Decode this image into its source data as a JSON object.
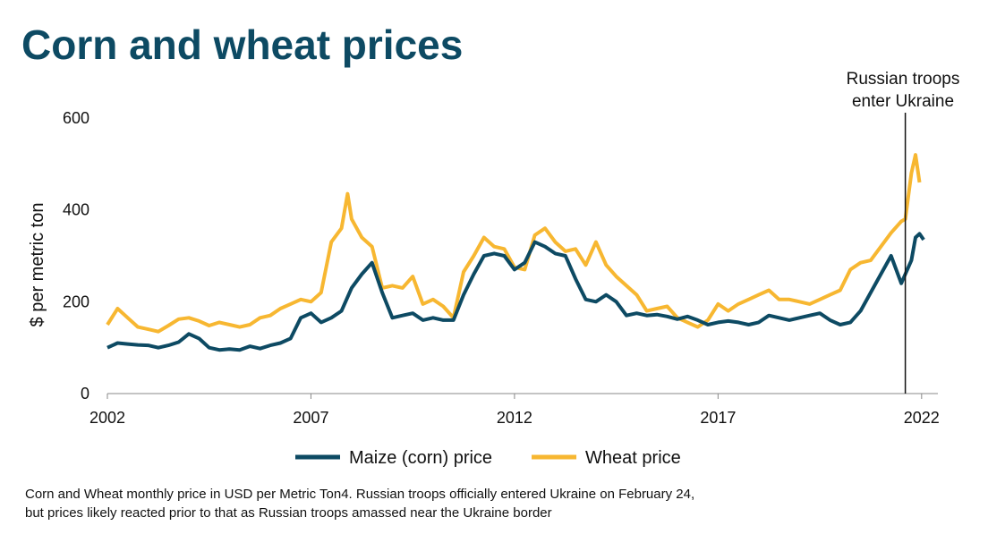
{
  "chart_data": {
    "type": "line",
    "title": "Corn and wheat prices",
    "y_label": "$ per metric ton",
    "caption": "Corn and Wheat monthly price in USD per Metric Ton4. Russian troops officially entered Ukraine on February 24, but prices likely reacted prior to that as Russian troops amassed near the Ukraine border",
    "annotation": {
      "lines": [
        "Russian troops",
        "enter Ukraine"
      ],
      "x": 2021.6
    },
    "xlim": [
      2002,
      2022.4
    ],
    "xticks": [
      2002,
      2007,
      2012,
      2017,
      2022
    ],
    "ylim": [
      0,
      600
    ],
    "yticks": [
      0,
      200,
      400,
      600
    ],
    "legend": "bottom",
    "series": [
      {
        "name": "Maize (corn) price",
        "color": "#0d4a63",
        "x": [
          2002,
          2002.25,
          2002.5,
          2002.75,
          2003,
          2003.25,
          2003.5,
          2003.75,
          2004,
          2004.25,
          2004.5,
          2004.75,
          2005,
          2005.25,
          2005.5,
          2005.75,
          2006,
          2006.25,
          2006.5,
          2006.75,
          2007,
          2007.25,
          2007.5,
          2007.75,
          2008,
          2008.25,
          2008.5,
          2008.75,
          2009,
          2009.25,
          2009.5,
          2009.75,
          2010,
          2010.25,
          2010.5,
          2010.75,
          2011,
          2011.25,
          2011.5,
          2011.75,
          2012,
          2012.25,
          2012.5,
          2012.75,
          2013,
          2013.25,
          2013.5,
          2013.75,
          2014,
          2014.25,
          2014.5,
          2014.75,
          2015,
          2015.25,
          2015.5,
          2015.75,
          2016,
          2016.25,
          2016.5,
          2016.75,
          2017,
          2017.25,
          2017.5,
          2017.75,
          2018,
          2018.25,
          2018.5,
          2018.75,
          2019,
          2019.25,
          2019.5,
          2019.75,
          2020,
          2020.25,
          2020.5,
          2020.75,
          2021,
          2021.25,
          2021.5,
          2021.6,
          2021.75,
          2021.85,
          2021.95,
          2022.05
        ],
        "values": [
          100,
          110,
          108,
          106,
          105,
          100,
          105,
          112,
          130,
          120,
          100,
          95,
          97,
          95,
          103,
          98,
          105,
          110,
          120,
          165,
          175,
          155,
          165,
          180,
          230,
          260,
          285,
          220,
          165,
          170,
          175,
          160,
          165,
          160,
          160,
          215,
          260,
          300,
          305,
          300,
          270,
          285,
          330,
          320,
          305,
          300,
          250,
          205,
          200,
          215,
          200,
          170,
          175,
          170,
          172,
          168,
          162,
          168,
          160,
          150,
          155,
          158,
          155,
          150,
          155,
          170,
          165,
          160,
          165,
          170,
          175,
          160,
          150,
          155,
          180,
          220,
          260,
          300,
          240,
          260,
          290,
          340,
          348,
          335
        ]
      },
      {
        "name": "Wheat price",
        "color": "#f7b731",
        "x": [
          2002,
          2002.25,
          2002.5,
          2002.75,
          2003,
          2003.25,
          2003.5,
          2003.75,
          2004,
          2004.25,
          2004.5,
          2004.75,
          2005,
          2005.25,
          2005.5,
          2005.75,
          2006,
          2006.25,
          2006.5,
          2006.75,
          2007,
          2007.25,
          2007.5,
          2007.75,
          2007.9,
          2008,
          2008.25,
          2008.5,
          2008.75,
          2009,
          2009.25,
          2009.5,
          2009.75,
          2010,
          2010.25,
          2010.5,
          2010.75,
          2011,
          2011.25,
          2011.5,
          2011.75,
          2012,
          2012.25,
          2012.5,
          2012.75,
          2013,
          2013.25,
          2013.5,
          2013.75,
          2014,
          2014.25,
          2014.5,
          2014.75,
          2015,
          2015.25,
          2015.5,
          2015.75,
          2016,
          2016.25,
          2016.5,
          2016.75,
          2017,
          2017.25,
          2017.5,
          2017.75,
          2018,
          2018.25,
          2018.5,
          2018.75,
          2019,
          2019.25,
          2019.5,
          2019.75,
          2020,
          2020.25,
          2020.5,
          2020.75,
          2021,
          2021.25,
          2021.5,
          2021.6,
          2021.75,
          2021.85,
          2021.95
        ],
        "values": [
          150,
          185,
          165,
          145,
          140,
          135,
          148,
          162,
          165,
          158,
          148,
          155,
          150,
          145,
          150,
          165,
          170,
          185,
          195,
          205,
          200,
          220,
          330,
          360,
          435,
          380,
          340,
          320,
          230,
          235,
          230,
          255,
          195,
          205,
          190,
          165,
          265,
          300,
          340,
          320,
          315,
          275,
          270,
          345,
          360,
          330,
          310,
          315,
          280,
          330,
          280,
          255,
          235,
          215,
          180,
          185,
          190,
          165,
          155,
          145,
          160,
          195,
          180,
          195,
          205,
          215,
          225,
          205,
          205,
          200,
          195,
          205,
          215,
          225,
          270,
          285,
          290,
          320,
          350,
          375,
          380,
          480,
          520,
          460
        ]
      }
    ]
  }
}
